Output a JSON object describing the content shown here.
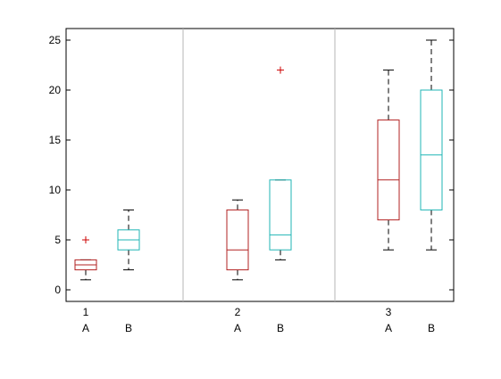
{
  "chart_data": {
    "type": "box",
    "title": "",
    "xlabel": "",
    "ylabel": "",
    "ylim": [
      -1.2,
      26.2
    ],
    "yticks": [
      0,
      5,
      10,
      15,
      20,
      25
    ],
    "grid": false,
    "groups": [
      {
        "label": "1",
        "boxes": [
          {
            "label": "A",
            "color": "#b22222",
            "whisker_low": 1,
            "q1": 2,
            "median": 2.5,
            "q3": 3,
            "whisker_high": 3,
            "outliers": [
              5
            ]
          },
          {
            "label": "B",
            "color": "#1fb5b5",
            "whisker_low": 2,
            "q1": 4,
            "median": 5,
            "q3": 6,
            "whisker_high": 8,
            "outliers": []
          }
        ]
      },
      {
        "label": "2",
        "boxes": [
          {
            "label": "A",
            "color": "#b22222",
            "whisker_low": 1,
            "q1": 2,
            "median": 4,
            "q3": 8,
            "whisker_high": 9,
            "outliers": []
          },
          {
            "label": "B",
            "color": "#1fb5b5",
            "whisker_low": 3,
            "q1": 4,
            "median": 5.5,
            "q3": 11,
            "whisker_high": 11,
            "outliers": [
              22
            ]
          }
        ]
      },
      {
        "label": "3",
        "boxes": [
          {
            "label": "A",
            "color": "#b22222",
            "whisker_low": 4,
            "q1": 7,
            "median": 11,
            "q3": 17,
            "whisker_high": 22,
            "outliers": []
          },
          {
            "label": "B",
            "color": "#1fb5b5",
            "whisker_low": 4,
            "q1": 8,
            "median": 13.5,
            "q3": 20,
            "whisker_high": 25,
            "outliers": []
          }
        ]
      }
    ],
    "colors": {
      "A": "#b22222",
      "B": "#1fb5b5",
      "whisker": "#000000",
      "outlier": "#cc0000",
      "separator": "#b4b4b4",
      "axis": "#000000"
    }
  }
}
